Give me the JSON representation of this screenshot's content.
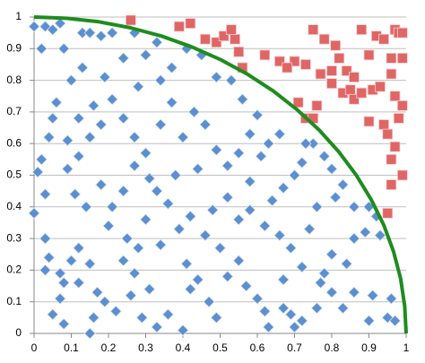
{
  "chart_data": {
    "type": "scatter",
    "xlim": [
      0,
      1
    ],
    "ylim": [
      0,
      1
    ],
    "xticks": [
      0,
      0.1,
      0.2,
      0.3,
      0.4,
      0.5,
      0.6,
      0.7,
      0.8,
      0.9,
      1
    ],
    "yticks": [
      0,
      0.1,
      0.2,
      0.3,
      0.4,
      0.5,
      0.6,
      0.7,
      0.8,
      0.9,
      1
    ],
    "grid": true,
    "series": [
      {
        "marker": "diamond",
        "color": "#5b8fd0",
        "x": [
          0,
          0.02,
          0.03,
          0.05,
          0.07,
          0.08,
          0.1,
          0.13,
          0.15,
          0.18,
          0.21,
          0.24,
          0.27,
          0.06,
          0.05,
          0.04,
          0.02,
          0.01,
          0.03,
          0.0,
          0.03,
          0.04,
          0.03,
          0.07,
          0.08,
          0.07,
          0.05,
          0.08,
          0.1,
          0.12,
          0.15,
          0.17,
          0.16,
          0.15,
          0.19,
          0.22,
          0.24,
          0.27,
          0.28,
          0.31,
          0.26,
          0.29,
          0.33,
          0.36,
          0.4,
          0.42,
          0.41,
          0.44,
          0.47,
          0.49,
          0.52,
          0.55,
          0.57,
          0.6,
          0.62,
          0.63,
          0.67,
          0.69,
          0.7,
          0.72,
          0.76,
          0.8,
          0.83,
          0.86,
          0.91,
          0.9,
          0.95,
          0.97,
          0.96,
          0.92,
          0.93,
          0.9,
          0.89,
          0.86,
          0.84,
          0.8,
          0.78,
          0.77,
          0.72,
          0.69,
          0.66,
          0.62,
          0.64,
          0.67,
          0.7,
          0.72,
          0.75,
          0.78,
          0.8,
          0.83,
          0.86,
          0.81,
          0.76,
          0.74,
          0.58,
          0.55,
          0.52,
          0.48,
          0.46,
          0.42,
          0.39,
          0.36,
          0.33,
          0.31,
          0.27,
          0.24,
          0.21,
          0.18,
          0.14,
          0.11,
          0.09,
          0.12,
          0.15,
          0.18,
          0.21,
          0.24,
          0.27,
          0.3,
          0.34,
          0.37,
          0.4,
          0.43,
          0.46,
          0.49,
          0.52,
          0.55,
          0.58,
          0.61,
          0.63,
          0.66,
          0.6,
          0.56,
          0.53,
          0.49,
          0.45,
          0.41,
          0.37,
          0.33,
          0.3,
          0.34,
          0.28,
          0.19,
          0.16,
          0.12,
          0.09,
          0.13,
          0.25,
          0.34,
          0.5,
          0.58,
          0.44,
          0.38,
          0.3,
          0.12,
          0.2,
          0.67,
          0.73
        ],
        "y": [
          0.97,
          0.9,
          0.97,
          0.96,
          0.98,
          0.9,
          0.8,
          0.95,
          0.95,
          0.94,
          0.95,
          0.87,
          0.95,
          0.73,
          0.68,
          0.62,
          0.55,
          0.51,
          0.44,
          0.38,
          0.3,
          0.24,
          0.2,
          0.19,
          0.16,
          0.11,
          0.06,
          0.03,
          0.23,
          0.27,
          0.22,
          0.13,
          0.05,
          0.0,
          0.1,
          0.07,
          0.23,
          0.19,
          0.27,
          0.14,
          0.12,
          0.05,
          0.02,
          0.06,
          0.01,
          0.14,
          0.22,
          0.17,
          0.1,
          0.05,
          0.18,
          0.23,
          0.15,
          0.11,
          0.07,
          0.02,
          0.08,
          0.06,
          0.02,
          0.04,
          0.08,
          0.13,
          0.08,
          0.13,
          0.12,
          0.04,
          0.05,
          0.04,
          0.11,
          0.37,
          0.31,
          0.4,
          0.32,
          0.3,
          0.22,
          0.25,
          0.19,
          0.16,
          0.21,
          0.27,
          0.31,
          0.34,
          0.42,
          0.46,
          0.5,
          0.54,
          0.6,
          0.56,
          0.52,
          0.47,
          0.4,
          0.43,
          0.4,
          0.33,
          0.39,
          0.36,
          0.43,
          0.39,
          0.31,
          0.37,
          0.33,
          0.41,
          0.45,
          0.49,
          0.53,
          0.45,
          0.4,
          0.47,
          0.4,
          0.44,
          0.52,
          0.56,
          0.62,
          0.66,
          0.74,
          0.68,
          0.62,
          0.57,
          0.66,
          0.73,
          0.62,
          0.7,
          0.66,
          0.58,
          0.53,
          0.57,
          0.63,
          0.56,
          0.6,
          0.63,
          0.69,
          0.74,
          0.8,
          0.81,
          0.88,
          0.9,
          0.84,
          0.92,
          0.88,
          0.8,
          0.78,
          0.81,
          0.72,
          0.68,
          0.61,
          0.84,
          0.3,
          0.28,
          0.27,
          0.48,
          0.52,
          0.5,
          0.36,
          0.16,
          0.34,
          0.17,
          0.6
        ]
      },
      {
        "marker": "square",
        "color": "#e06666",
        "x": [
          0.26,
          0.39,
          0.42,
          0.46,
          0.49,
          0.51,
          0.54,
          0.55,
          0.56,
          0.62,
          0.66,
          0.7,
          0.73,
          0.75,
          0.78,
          0.81,
          0.77,
          0.8,
          0.82,
          0.84,
          0.86,
          0.88,
          0.9,
          0.92,
          0.94,
          0.96,
          0.97,
          0.98,
          0.99,
          0.99,
          0.96,
          0.73,
          0.75,
          0.76,
          0.83,
          0.85,
          0.86,
          0.88,
          0.91,
          0.93,
          0.97,
          0.99,
          0.98,
          0.9,
          0.94,
          0.95,
          0.97,
          0.96,
          0.99,
          0.96,
          0.95,
          0.71,
          0.8,
          0.68,
          0.53
        ],
        "y": [
          0.99,
          0.97,
          0.98,
          0.93,
          0.92,
          0.94,
          0.93,
          0.89,
          0.84,
          0.88,
          0.86,
          0.86,
          0.85,
          0.96,
          0.93,
          0.91,
          0.82,
          0.83,
          0.87,
          0.83,
          0.81,
          0.96,
          0.88,
          0.94,
          0.93,
          0.87,
          0.96,
          0.95,
          0.95,
          0.87,
          0.82,
          0.68,
          0.68,
          0.72,
          0.76,
          0.77,
          0.74,
          0.76,
          0.77,
          0.78,
          0.75,
          0.72,
          0.68,
          0.67,
          0.66,
          0.63,
          0.59,
          0.55,
          0.5,
          0.47,
          0.38,
          0.73,
          0.79,
          0.84,
          0.96
        ]
      },
      {
        "marker": "line",
        "color": "#1e8c1e",
        "x": [
          0,
          0.087,
          0.174,
          0.259,
          0.342,
          0.423,
          0.5,
          0.574,
          0.643,
          0.707,
          0.766,
          0.819,
          0.866,
          0.906,
          0.94,
          0.966,
          0.985,
          0.996,
          1
        ],
        "y": [
          1,
          0.996,
          0.985,
          0.966,
          0.94,
          0.906,
          0.866,
          0.819,
          0.766,
          0.707,
          0.643,
          0.574,
          0.5,
          0.423,
          0.342,
          0.259,
          0.174,
          0.087,
          0
        ]
      }
    ]
  }
}
